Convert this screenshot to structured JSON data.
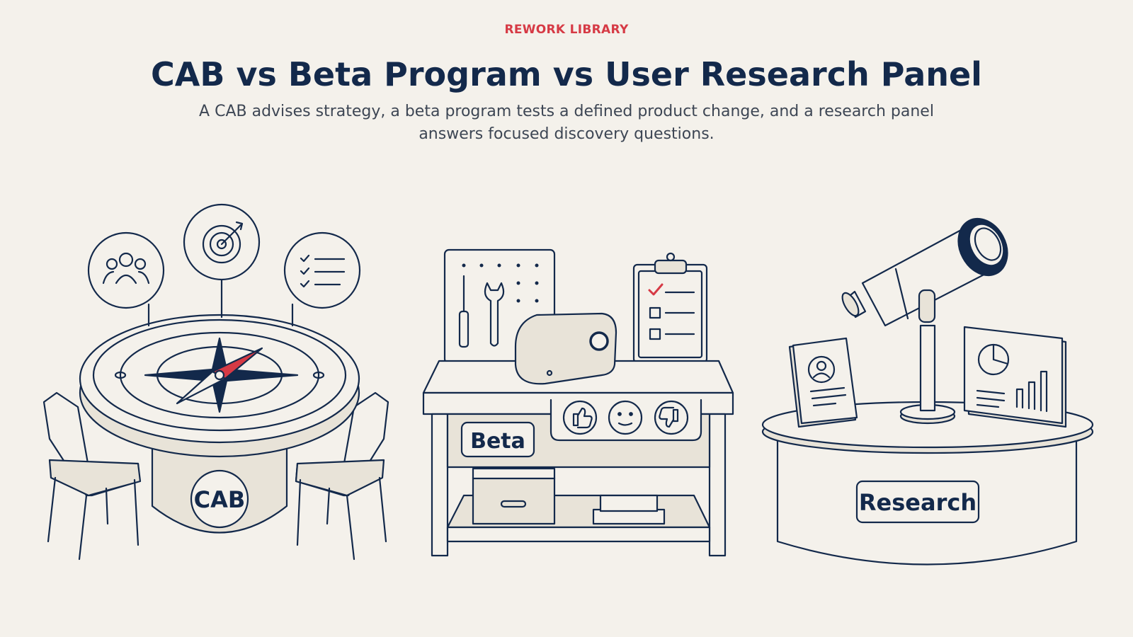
{
  "header": {
    "eyebrow": "REWORK LIBRARY",
    "title": "CAB vs Beta Program vs User Research Panel",
    "subtitle": "A CAB advises strategy, a beta program tests a defined product change, and a research panel answers focused discovery questions."
  },
  "scenes": {
    "cab": {
      "label": "CAB",
      "icons": [
        "people-icon",
        "target-icon",
        "checklist-icon",
        "compass-icon",
        "chair-icon"
      ]
    },
    "beta": {
      "label": "Beta",
      "icons": [
        "screwdriver-icon",
        "wrench-icon",
        "device-icon",
        "clipboard-icon",
        "thumbs-up-icon",
        "neutral-face-icon",
        "thumbs-down-icon"
      ]
    },
    "research": {
      "label": "Research",
      "icons": [
        "telescope-icon",
        "profile-card-icon",
        "chart-board-icon"
      ]
    }
  },
  "colors": {
    "navy": "#13294b",
    "accent": "#d63a45",
    "background": "#f4f1eb",
    "fill": "#e8e3d8"
  }
}
